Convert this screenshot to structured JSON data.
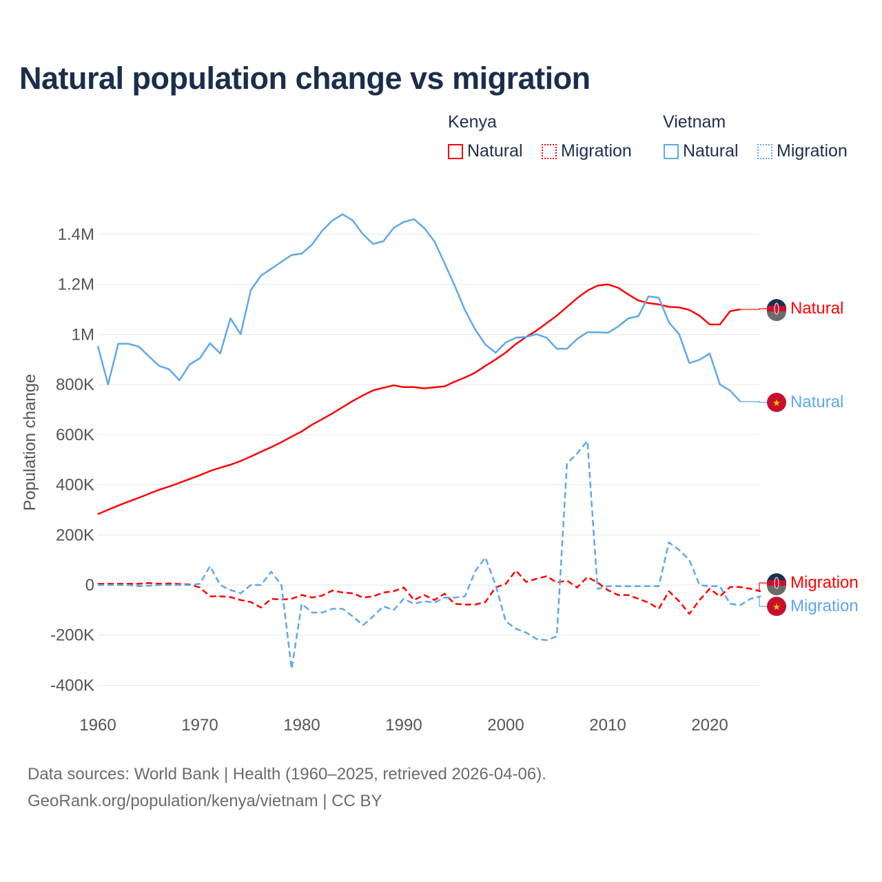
{
  "title": "Natural population change vs migration",
  "legend": {
    "groups": [
      {
        "name": "Kenya",
        "items": [
          {
            "label": "Natural",
            "style": "solid",
            "color": "#ff0000"
          },
          {
            "label": "Migration",
            "style": "dotted",
            "color": "#ff0000"
          }
        ]
      },
      {
        "name": "Vietnam",
        "items": [
          {
            "label": "Natural",
            "style": "solid",
            "color": "#5ea8ec"
          },
          {
            "label": "Migration",
            "style": "dotted",
            "color": "#5ea8ec"
          }
        ]
      }
    ]
  },
  "end_labels": {
    "kenya_natural": "Natural",
    "vietnam_natural": "Natural",
    "kenya_migration": "Migration",
    "vietnam_migration": "Migration"
  },
  "footer": {
    "line1": "Data sources: World Bank | Health (1960–2025, retrieved 2026-04-06).",
    "line2": "GeoRank.org/population/kenya/vietnam | CC BY"
  },
  "chart_data": {
    "type": "line",
    "title": "Natural population change vs migration",
    "xlabel": "",
    "ylabel": "Population change",
    "xlim": [
      1960,
      2025
    ],
    "ylim": [
      -400000,
      1500000
    ],
    "x_ticks": [
      1960,
      1970,
      1980,
      1990,
      2000,
      2010,
      2020
    ],
    "y_ticks": [
      {
        "v": -400000,
        "label": "-400K"
      },
      {
        "v": -200000,
        "label": "-200K"
      },
      {
        "v": 0,
        "label": "0"
      },
      {
        "v": 200000,
        "label": "200K"
      },
      {
        "v": 400000,
        "label": "400K"
      },
      {
        "v": 600000,
        "label": "600K"
      },
      {
        "v": 800000,
        "label": "800K"
      },
      {
        "v": 1000000,
        "label": "1M"
      },
      {
        "v": 1200000,
        "label": "1.2M"
      },
      {
        "v": 1400000,
        "label": "1.4M"
      }
    ],
    "grid": true,
    "legend_position": "top-right",
    "series": [
      {
        "name": "Kenya Natural",
        "color": "#ff0000",
        "dash": false,
        "start": 1960,
        "values": [
          283000,
          300000,
          317000,
          333000,
          348000,
          364000,
          380000,
          393000,
          408000,
          423000,
          438000,
          455000,
          468000,
          480000,
          495000,
          513000,
          532000,
          550000,
          570000,
          592000,
          613000,
          640000,
          662000,
          685000,
          710000,
          735000,
          757000,
          777000,
          787000,
          797000,
          790000,
          790000,
          785000,
          789000,
          793000,
          812000,
          828000,
          848000,
          875000,
          900000,
          928000,
          962000,
          990000,
          1015000,
          1045000,
          1075000,
          1110000,
          1145000,
          1175000,
          1195000,
          1200000,
          1187000,
          1160000,
          1136000,
          1125000,
          1120000,
          1110000,
          1108000,
          1098000,
          1075000,
          1040000,
          1040000,
          1093000,
          1100000
        ]
      },
      {
        "name": "Kenya Migration",
        "color": "#ff0000",
        "dash": true,
        "start": 1960,
        "values": [
          5000,
          5000,
          5000,
          5000,
          5000,
          8000,
          5000,
          6000,
          4000,
          2000,
          -10000,
          -45000,
          -45000,
          -48000,
          -60000,
          -68000,
          -90000,
          -55000,
          -58000,
          -55000,
          -40000,
          -50000,
          -42000,
          -22000,
          -30000,
          -33000,
          -50000,
          -45000,
          -30000,
          -25000,
          -10000,
          -60000,
          -40000,
          -60000,
          -35000,
          -75000,
          -78000,
          -78000,
          -68000,
          -10000,
          5000,
          58000,
          12000,
          25000,
          35000,
          10000,
          18000,
          -10000,
          32000,
          10000,
          -20000,
          -40000,
          -40000,
          -55000,
          -70000,
          -95000,
          -25000,
          -65000,
          -115000,
          -60000,
          -15000,
          -45000,
          -8000,
          -8000,
          -15000,
          -25000
        ]
      },
      {
        "name": "Vietnam Natural",
        "color": "#5ea8ec",
        "dash": false,
        "start": 1960,
        "values": [
          954000,
          800000,
          963000,
          963000,
          952000,
          913000,
          875000,
          861000,
          817000,
          880000,
          905000,
          965000,
          924000,
          1064000,
          1001000,
          1177000,
          1235000,
          1262000,
          1290000,
          1317000,
          1323000,
          1359000,
          1414000,
          1455000,
          1480000,
          1455000,
          1400000,
          1361000,
          1372000,
          1425000,
          1449000,
          1460000,
          1425000,
          1372000,
          1284000,
          1194000,
          1097000,
          1020000,
          960000,
          927000,
          968000,
          987000,
          990000,
          1001000,
          987000,
          943000,
          943000,
          982000,
          1009000,
          1009000,
          1007000,
          1031000,
          1064000,
          1073000,
          1152000,
          1147000,
          1048000,
          1001000,
          886000,
          899000,
          924000,
          800000,
          776000,
          732000
        ]
      },
      {
        "name": "Vietnam Migration",
        "color": "#5ea8ec",
        "dash": true,
        "start": 1960,
        "values": [
          0,
          0,
          0,
          0,
          -5000,
          -3000,
          0,
          0,
          0,
          0,
          5000,
          75000,
          0,
          -20000,
          -33000,
          0,
          0,
          53000,
          0,
          -335000,
          -75000,
          -110000,
          -110000,
          -95000,
          -95000,
          -125000,
          -160000,
          -125000,
          -85000,
          -100000,
          -55000,
          -75000,
          -65000,
          -70000,
          -50000,
          -50000,
          -45000,
          55000,
          110000,
          0,
          -145000,
          -175000,
          -190000,
          -215000,
          -220000,
          -205000,
          485000,
          525000,
          575000,
          -15000,
          -5000,
          -5000,
          -5000,
          -5000,
          -5000,
          -5000,
          170000,
          140000,
          100000,
          0,
          -5000,
          -5000,
          -75000,
          -80000,
          -55000,
          -45000
        ]
      }
    ]
  }
}
